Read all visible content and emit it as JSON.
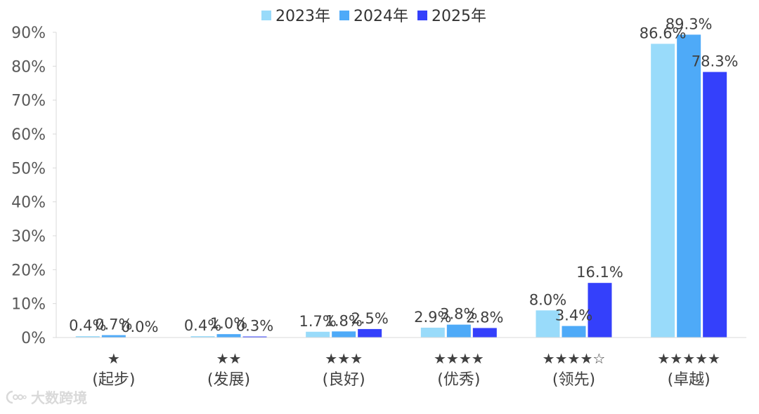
{
  "chart_data": {
    "type": "bar",
    "categories": [
      {
        "stars": "★",
        "label": "(起步)"
      },
      {
        "stars": "★★",
        "label": "(发展)"
      },
      {
        "stars": "★★★",
        "label": "(良好)"
      },
      {
        "stars": "★★★★",
        "label": "(优秀)"
      },
      {
        "stars": "★★★★☆",
        "label": "(领先)"
      },
      {
        "stars": "★★★★★",
        "label": "(卓越)"
      }
    ],
    "series": [
      {
        "name": "2023年",
        "color": "#99dbfa",
        "values": [
          0.4,
          0.4,
          1.7,
          2.9,
          8.0,
          86.6
        ],
        "labels": [
          "0.4%",
          "0.4%",
          "1.7%",
          "2.9%",
          "8.0%",
          "86.6%"
        ]
      },
      {
        "name": "2024年",
        "color": "#4eaaf8",
        "values": [
          0.7,
          1.0,
          1.8,
          3.8,
          3.4,
          89.3
        ],
        "labels": [
          "0.7%",
          "1.0%",
          "1.8%",
          "3.8%",
          "3.4%",
          "89.3%"
        ]
      },
      {
        "name": "2025年",
        "color": "#3440fb",
        "values": [
          0.0,
          0.3,
          2.5,
          2.8,
          16.1,
          78.3
        ],
        "labels": [
          "0.0%",
          "0.3%",
          "2.5%",
          "2.8%",
          "16.1%",
          "78.3%"
        ]
      }
    ],
    "ylim": [
      0,
      90
    ],
    "yticks": [
      0,
      10,
      20,
      30,
      40,
      50,
      60,
      70,
      80,
      90
    ],
    "ytick_labels": [
      "0%",
      "10%",
      "20%",
      "30%",
      "40%",
      "50%",
      "60%",
      "70%",
      "80%",
      "90%"
    ],
    "legend_position": "top-center",
    "grid": false
  },
  "watermark": {
    "text": "大数跨境"
  }
}
